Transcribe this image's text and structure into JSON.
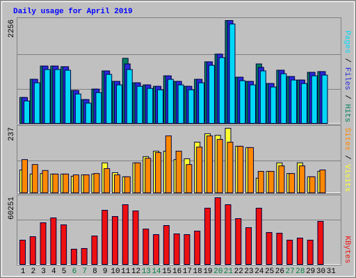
{
  "chart_data": [
    {
      "type": "bar",
      "title": "Daily usage for April 2019",
      "series": [
        {
          "name": "Hits",
          "color": "#00805c",
          "values": [
            568,
            967,
            1258,
            1258,
            1243,
            721,
            522,
            752,
            1151,
            921,
            1427,
            890,
            844,
            813,
            1043,
            921,
            813,
            967,
            1350,
            1519,
            2256,
            1013,
            921,
            1304,
            875,
            1166,
            1028,
            951,
            1120,
            1136,
            0
          ]
        },
        {
          "name": "Files",
          "color": "#2828d8",
          "values": [
            568,
            967,
            1258,
            1258,
            1243,
            721,
            522,
            752,
            1151,
            921,
            1304,
            890,
            844,
            813,
            1043,
            921,
            813,
            967,
            1350,
            1519,
            2256,
            1013,
            921,
            1228,
            875,
            1166,
            1028,
            951,
            1120,
            1136,
            0
          ]
        },
        {
          "name": "Pages",
          "color": "#00d8f8",
          "values": [
            491,
            890,
            1181,
            1181,
            1166,
            644,
            445,
            675,
            1074,
            844,
            1181,
            813,
            767,
            736,
            966,
            844,
            736,
            890,
            1273,
            1442,
            2179,
            936,
            844,
            1151,
            798,
            1089,
            951,
            874,
            1043,
            1059,
            0
          ]
        }
      ],
      "ylim": [
        0,
        2256
      ],
      "yticks": [
        2256
      ],
      "gridlines": [
        752,
        1504
      ],
      "legend_separator": " / "
    },
    {
      "type": "bar",
      "series": [
        {
          "name": "Visits",
          "color": "#ffff30",
          "values": [
            84,
            69,
            71,
            69,
            69,
            61,
            66,
            69,
            110,
            74,
            59,
            110,
            133,
            153,
            153,
            122,
            125,
            186,
            217,
            211,
            237,
            171,
            166,
            54,
            79,
            110,
            71,
            110,
            59,
            79,
            0
          ]
        },
        {
          "name": "Sites",
          "color": "#ff8800",
          "values": [
            122,
            104,
            82,
            69,
            69,
            66,
            66,
            71,
            89,
            66,
            59,
            110,
            127,
            148,
            209,
            153,
            104,
            168,
            209,
            196,
            186,
            171,
            166,
            79,
            79,
            99,
            71,
            99,
            59,
            84,
            0
          ]
        }
      ],
      "ylim": [
        0,
        237
      ],
      "yticks": [
        237
      ],
      "gridlines": [
        118
      ],
      "legend_separator": " / "
    },
    {
      "type": "bar",
      "categories": [
        "1",
        "2",
        "3",
        "4",
        "5",
        "6",
        "7",
        "8",
        "9",
        "10",
        "11",
        "12",
        "13",
        "14",
        "15",
        "16",
        "17",
        "18",
        "19",
        "20",
        "21",
        "22",
        "23",
        "24",
        "25",
        "26",
        "27",
        "28",
        "29",
        "30",
        "31"
      ],
      "category_colors": [
        "#000",
        "#000",
        "#000",
        "#000",
        "#000",
        "#008040",
        "#008040",
        "#000",
        "#000",
        "#000",
        "#000",
        "#000",
        "#008040",
        "#008040",
        "#000",
        "#000",
        "#000",
        "#000",
        "#000",
        "#008040",
        "#008040",
        "#000",
        "#000",
        "#000",
        "#000",
        "#000",
        "#008040",
        "#008040",
        "#000",
        "#000",
        "#000"
      ],
      "series": [
        {
          "name": "KBytes",
          "color": "#ee1010",
          "values": [
            21966,
            25105,
            37657,
            42051,
            35774,
            13808,
            14435,
            25732,
            48954,
            43306,
            53975,
            48326,
            32008,
            26987,
            35146,
            27615,
            26987,
            30125,
            50837,
            60251,
            53975,
            41423,
            33263,
            50837,
            28870,
            28243,
            21966,
            23849,
            21966,
            38912,
            0
          ]
        }
      ],
      "ylim": [
        0,
        60251
      ],
      "yticks": [
        60251
      ],
      "gridlines": [
        40167
      ],
      "legend_separator": " / "
    }
  ]
}
